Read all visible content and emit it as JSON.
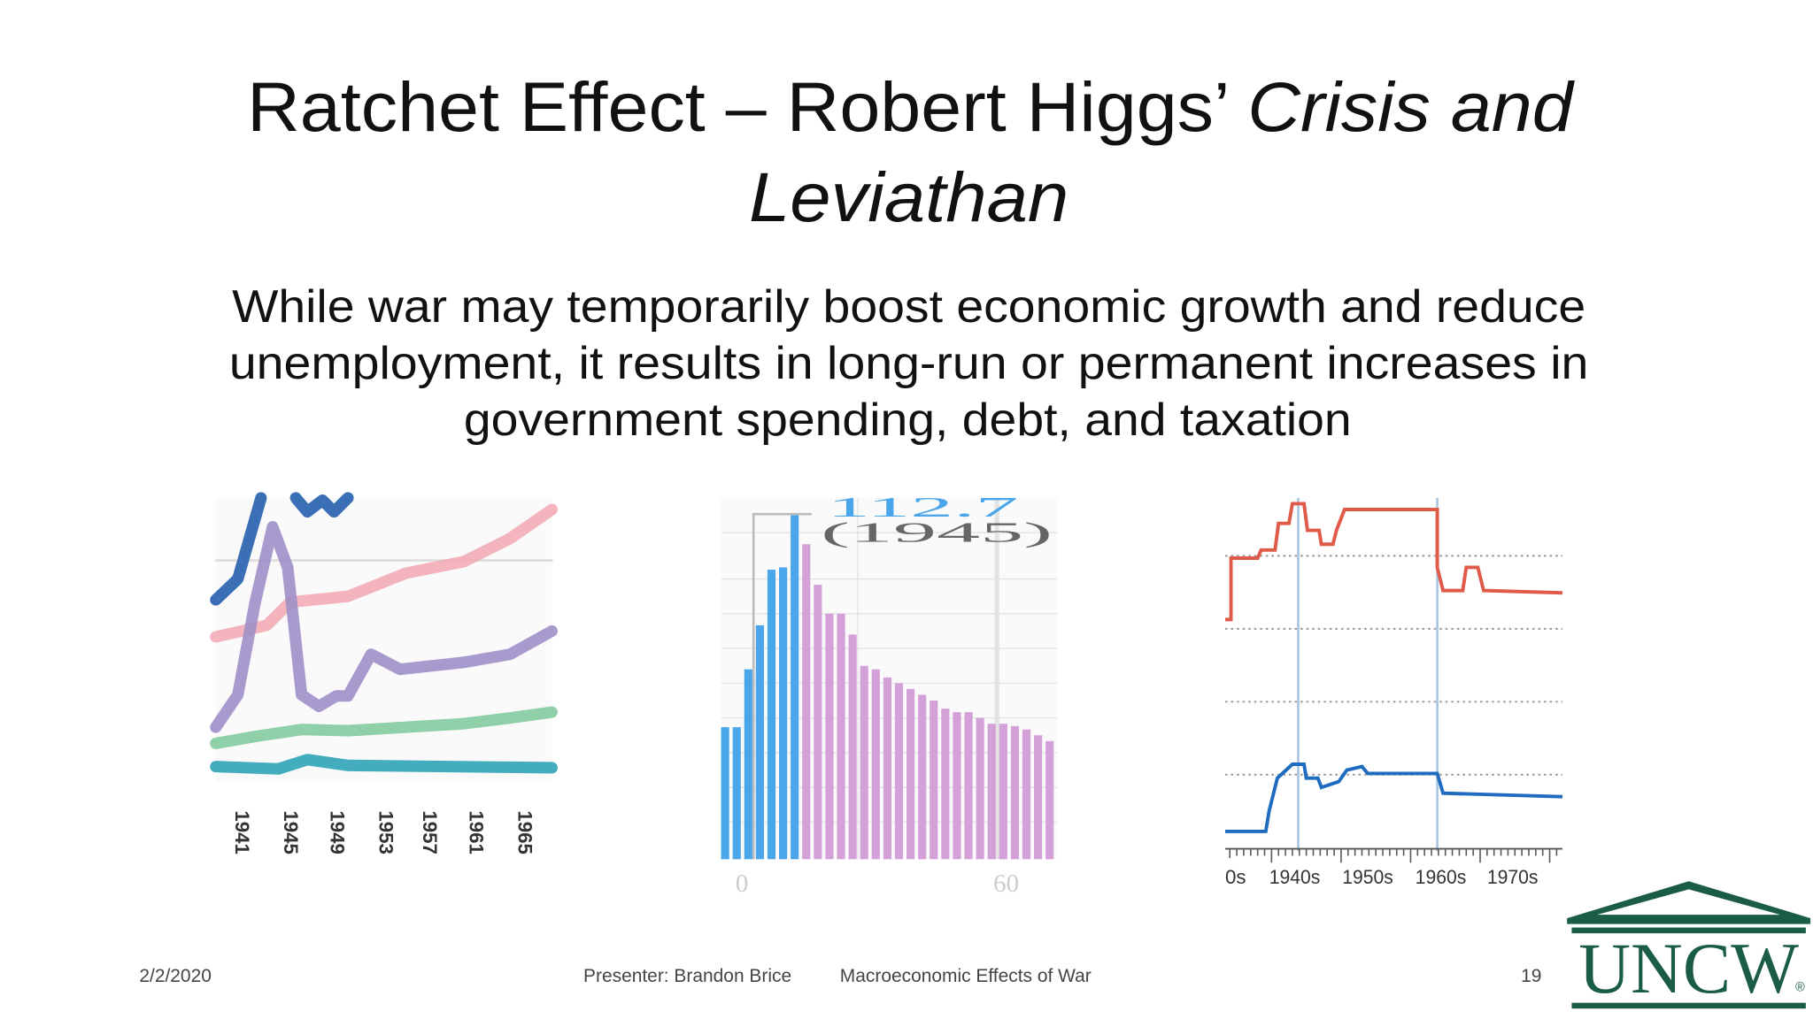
{
  "title": {
    "main": "Ratchet Effect – Robert Higgs’ ",
    "italic1": "Crisis and",
    "italic2": "Leviathan"
  },
  "body": [
    "While war may temporarily boost economic growth and reduce",
    "unemployment, it results in long-run or permanent increases in",
    "government spending, debt, and taxation"
  ],
  "figures": [
    {
      "tick_labels": [
        "1941",
        "1945",
        "1949",
        "1953",
        "1957",
        "1961",
        "1965"
      ]
    },
    {
      "annotations": [
        "112.7",
        "(1945)"
      ],
      "tick_labels": [
        "0",
        "60"
      ]
    },
    {
      "tick_labels": [
        "0s",
        "1940s",
        "1950s",
        "1960s",
        "1970s"
      ]
    }
  ],
  "footer": {
    "date": "2/2/2020",
    "presenter": "Presenter: Brandon Brice",
    "topic": "Macroeconomic Effects of War",
    "page": "19"
  },
  "logo": {
    "text": "UNCW",
    "mark": "®"
  }
}
